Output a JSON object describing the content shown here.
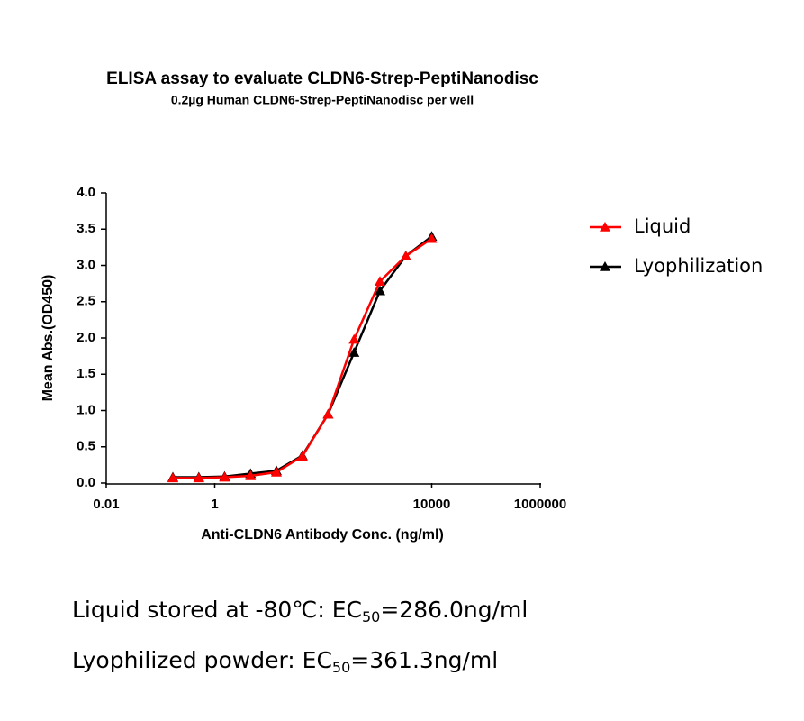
{
  "chart_data": {
    "type": "line",
    "title": "ELISA assay to evaluate CLDN6-Strep-PeptiNanodisc",
    "subtitle": "0.2µg Human CLDN6-Strep-PeptiNanodisc per well",
    "x_label": "Anti-CLDN6 Antibody Conc. (ng/ml)",
    "y_label": "Mean Abs.(OD450)",
    "x_scale": "log",
    "xlim": [
      0.01,
      1000000
    ],
    "xticks": [
      0.01,
      1,
      10000,
      1000000
    ],
    "ylim": [
      0,
      4
    ],
    "yticks": [
      {
        "value": 0,
        "label": "0.0"
      },
      {
        "value": 0.5,
        "label": "0.5"
      },
      {
        "value": 1,
        "label": "1.0"
      },
      {
        "value": 1.5,
        "label": "1.5"
      },
      {
        "value": 2,
        "label": "2.0"
      },
      {
        "value": 2.5,
        "label": "2.5"
      },
      {
        "value": 3,
        "label": "3.0"
      },
      {
        "value": 3.5,
        "label": "3.5"
      },
      {
        "value": 4,
        "label": "4.0"
      }
    ],
    "x": [
      0.169,
      0.508,
      1.52,
      4.57,
      13.7,
      41.2,
      123,
      370,
      1111,
      3333,
      10000
    ],
    "series": [
      {
        "name": "Liquid",
        "color": "#ff0000",
        "values": [
          0.07,
          0.07,
          0.08,
          0.1,
          0.15,
          0.37,
          0.95,
          1.98,
          2.78,
          3.13,
          3.37
        ]
      },
      {
        "name": "Lyophilization",
        "color": "#000000",
        "values": [
          0.08,
          0.08,
          0.09,
          0.13,
          0.17,
          0.38,
          0.95,
          1.8,
          2.65,
          3.13,
          3.4
        ]
      }
    ],
    "legend": "right",
    "annotations": [
      {
        "text": "Liquid stored at -80℃: EC",
        "sub": "50",
        "tail": "=286.0ng/ml"
      },
      {
        "text": "Lyophilized powder: EC",
        "sub": "50",
        "tail": "=361.3ng/ml"
      }
    ]
  }
}
